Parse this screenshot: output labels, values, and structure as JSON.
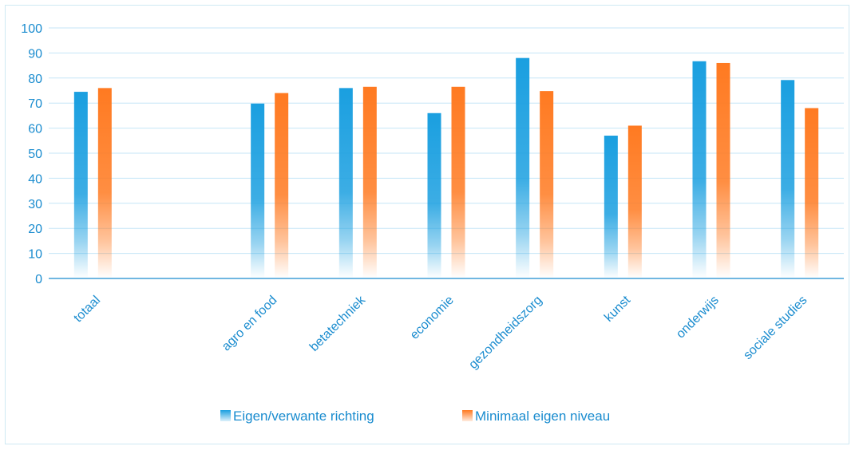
{
  "chart_data": {
    "type": "bar",
    "categories": [
      "totaal",
      "",
      "agro en food",
      "betatechniek",
      "economie",
      "gezondheidszorg",
      "kunst",
      "onderwijs",
      "sociale studies"
    ],
    "series": [
      {
        "name": "Eigen/verwante richting",
        "values": [
          74.5,
          null,
          69.8,
          76.0,
          66.0,
          88.0,
          57.0,
          86.7,
          79.2
        ],
        "color": "#1a9fe0"
      },
      {
        "name": "Minimaal eigen niveau",
        "values": [
          76.0,
          null,
          74.0,
          76.5,
          76.5,
          74.8,
          61.0,
          86.0,
          68.0
        ],
        "color": "#ff7a21"
      }
    ],
    "yticks": [
      0,
      10,
      20,
      30,
      40,
      50,
      60,
      70,
      80,
      90,
      100
    ],
    "ylim": [
      0,
      100
    ],
    "grid": true,
    "legend": "bottom-center",
    "axis_color": "#1a8ccf",
    "grid_color": "#c5e6f7"
  }
}
